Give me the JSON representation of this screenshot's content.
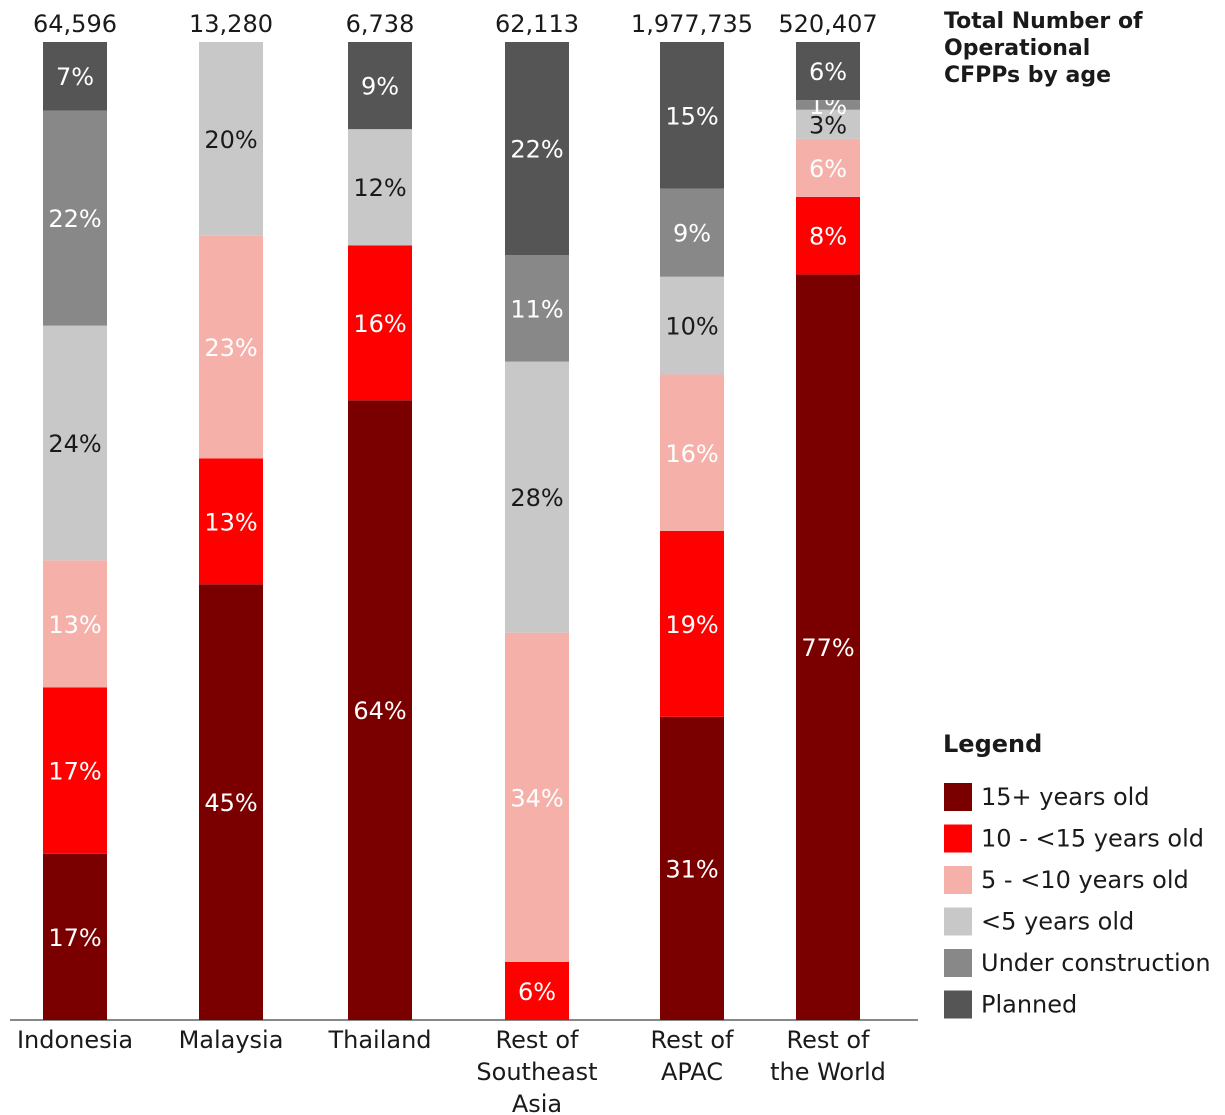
{
  "chart_data": {
    "type": "stacked-bar",
    "categories": [
      "Indonesia",
      "Malaysia",
      "Thailand",
      "Rest of Southeast Asia",
      "Rest of APAC",
      "Rest of the World"
    ],
    "totals_title": "Total Number of Operational CFPPs by age",
    "totals": [
      {
        "value": 64596,
        "label": "64,596"
      },
      {
        "value": 13280,
        "label": "13,280"
      },
      {
        "value": 6738,
        "label": "6,738"
      },
      {
        "value": 62113,
        "label": "62,113"
      },
      {
        "value": 1977735,
        "label": "1,977,735"
      },
      {
        "value": 520407,
        "label": "520,407"
      }
    ],
    "legend_title": "Legend",
    "series": [
      {
        "name": "15+ years old",
        "color": "#7a0000",
        "text_color": "#ffffff",
        "values": [
          17,
          45,
          64,
          null,
          31,
          77
        ],
        "value_labels": [
          "17%",
          "45%",
          "64%",
          null,
          "31%",
          "77%"
        ]
      },
      {
        "name": "10 - <15 years old",
        "color": "#ff0000",
        "text_color": "#ffffff",
        "values": [
          17,
          13,
          16,
          6,
          19,
          8
        ],
        "value_labels": [
          "17%",
          "13%",
          "16%",
          "6%",
          "19%",
          "8%"
        ]
      },
      {
        "name": "5 - <10 years old",
        "color": "#f5b0aa",
        "text_color": "#ffffff",
        "values": [
          13,
          23,
          null,
          34,
          16,
          6
        ],
        "value_labels": [
          "13%",
          "23%",
          null,
          "34%",
          "16%",
          "6%"
        ]
      },
      {
        "name": "<5 years old",
        "color": "#c8c8c8",
        "text_color": "#1a1a1a",
        "values": [
          24,
          20,
          12,
          28,
          10,
          3
        ],
        "value_labels": [
          "24%",
          "20%",
          "12%",
          "28%",
          "10%",
          "3%"
        ]
      },
      {
        "name": "Under construction",
        "color": "#888888",
        "text_color": "#ffffff",
        "values": [
          22,
          null,
          null,
          11,
          9,
          1
        ],
        "value_labels": [
          "22%",
          null,
          null,
          "11%",
          "9%",
          "1%"
        ]
      },
      {
        "name": "Planned",
        "color": "#555555",
        "text_color": "#ffffff",
        "values": [
          7,
          null,
          9,
          22,
          15,
          6
        ],
        "value_labels": [
          "7%",
          null,
          "9%",
          "22%",
          "15%",
          "6%"
        ]
      }
    ]
  }
}
